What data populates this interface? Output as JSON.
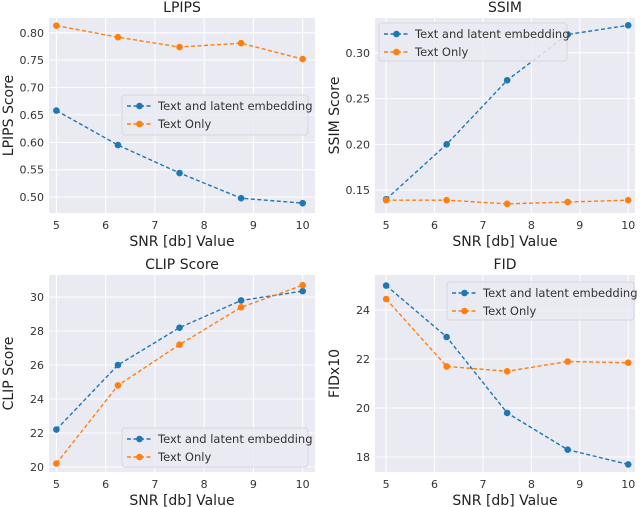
{
  "colors": {
    "background": "#eaeaf2",
    "grid": "#ffffff",
    "series_blue": "#1f77b4",
    "series_orange": "#ff7f0e"
  },
  "chart_data": [
    {
      "type": "line",
      "title": "LPIPS",
      "xlabel": "SNR [db] Value",
      "ylabel": "LPIPS Score",
      "x": [
        5,
        6.25,
        7.5,
        8.75,
        10
      ],
      "xticks": [
        5,
        6,
        7,
        8,
        9,
        10
      ],
      "yticks": [
        "0.50",
        "0.55",
        "0.60",
        "0.65",
        "0.70",
        "0.75",
        "0.80"
      ],
      "xlim": [
        4.85,
        10.25
      ],
      "ylim": [
        0.471,
        0.827
      ],
      "grid": true,
      "legend": "center-right",
      "series": [
        {
          "name": "Text and latent embedding",
          "values": [
            0.658,
            0.595,
            0.544,
            0.498,
            0.489
          ]
        },
        {
          "name": "Text Only",
          "values": [
            0.813,
            0.792,
            0.774,
            0.781,
            0.752
          ]
        }
      ]
    },
    {
      "type": "line",
      "title": "SSIM",
      "xlabel": "SNR [db] Value",
      "ylabel": "SSIM Score",
      "x": [
        5,
        6.25,
        7.5,
        8.75,
        10
      ],
      "xticks": [
        5,
        6,
        7,
        8,
        9,
        10
      ],
      "yticks": [
        "0.15",
        "0.20",
        "0.25",
        "0.30"
      ],
      "xlim": [
        4.77,
        10.14
      ],
      "ylim": [
        0.125,
        0.338
      ],
      "grid": true,
      "legend": "upper-left",
      "series": [
        {
          "name": "Text and latent embedding",
          "values": [
            0.14,
            0.2,
            0.27,
            0.32,
            0.33
          ]
        },
        {
          "name": "Text Only",
          "values": [
            0.139,
            0.139,
            0.135,
            0.137,
            0.139
          ]
        }
      ]
    },
    {
      "type": "line",
      "title": "CLIP Score",
      "xlabel": "SNR [db] Value",
      "ylabel": "CLIP Score",
      "x": [
        5,
        6.25,
        7.5,
        8.75,
        10
      ],
      "xticks": [
        5,
        6,
        7,
        8,
        9,
        10
      ],
      "yticks": [
        "20",
        "22",
        "24",
        "26",
        "28",
        "30"
      ],
      "xlim": [
        4.85,
        10.25
      ],
      "ylim": [
        19.7,
        31.3
      ],
      "grid": true,
      "legend": "lower-right",
      "series": [
        {
          "name": "Text and latent embedding",
          "values": [
            22.2,
            26.0,
            28.2,
            29.8,
            30.35
          ]
        },
        {
          "name": "Text Only",
          "values": [
            20.2,
            24.8,
            27.2,
            29.4,
            30.7
          ]
        }
      ]
    },
    {
      "type": "line",
      "title": "FID",
      "xlabel": "SNR [db] Value",
      "ylabel": "FIDx10",
      "x": [
        5,
        6.25,
        7.5,
        8.75,
        10
      ],
      "xticks": [
        5,
        6,
        7,
        8,
        9,
        10
      ],
      "yticks": [
        "18",
        "20",
        "22",
        "24"
      ],
      "xlim": [
        4.77,
        10.14
      ],
      "ylim": [
        17.39,
        25.43
      ],
      "grid": true,
      "legend": "upper-right",
      "series": [
        {
          "name": "Text and latent embedding",
          "values": [
            25.0,
            22.9,
            19.8,
            18.3,
            17.7
          ]
        },
        {
          "name": "Text Only",
          "values": [
            24.45,
            21.7,
            21.5,
            21.9,
            21.85
          ]
        }
      ]
    }
  ]
}
